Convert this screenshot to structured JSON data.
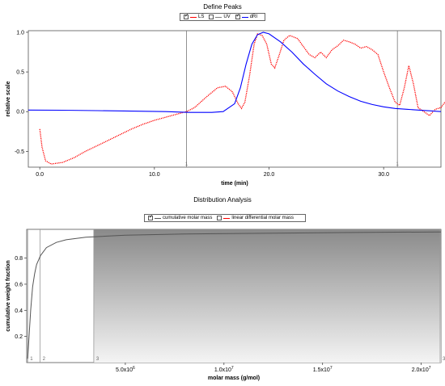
{
  "top": {
    "title": "Define Peaks",
    "legend": [
      {
        "label": "LS",
        "checked": true,
        "color": "#ff0000"
      },
      {
        "label": "UV",
        "checked": false,
        "color": "#808080"
      },
      {
        "label": "dRI",
        "checked": true,
        "color": "#0000ff"
      }
    ]
  },
  "bottom": {
    "title": "Distribution Analysis",
    "legend": [
      {
        "label": "cumulative molar mass",
        "checked": true,
        "color": "#555555"
      },
      {
        "label": "linear differential molar mass",
        "checked": false,
        "color": "#ff0000"
      }
    ]
  },
  "chart_data": [
    {
      "type": "line",
      "title": "Define Peaks",
      "xlabel": "time (min)",
      "ylabel": "relative scale",
      "xlim": [
        -1,
        35
      ],
      "ylim": [
        -0.7,
        1.02
      ],
      "xticks": [
        {
          "v": 0,
          "label": "0.0"
        },
        {
          "v": 10,
          "label": "10.0"
        },
        {
          "v": 20,
          "label": "20.0"
        },
        {
          "v": 30,
          "label": "30.0"
        }
      ],
      "yticks": [
        {
          "v": 1.0,
          "label": "1.0"
        },
        {
          "v": 0.5,
          "label": "0.5"
        },
        {
          "v": 0.0,
          "label": "0.0"
        },
        {
          "v": -0.5,
          "label": "-0.5"
        }
      ],
      "markers": [
        {
          "x": 12.8,
          "label": "1"
        },
        {
          "x": 31.2,
          "label": "1"
        }
      ],
      "series": [
        {
          "name": "LS",
          "color": "#ff0000",
          "style": "dotted",
          "points": [
            [
              0.0,
              -0.22
            ],
            [
              0.2,
              -0.45
            ],
            [
              0.5,
              -0.62
            ],
            [
              1,
              -0.66
            ],
            [
              2,
              -0.64
            ],
            [
              3,
              -0.58
            ],
            [
              4,
              -0.5
            ],
            [
              5,
              -0.43
            ],
            [
              6,
              -0.36
            ],
            [
              7,
              -0.29
            ],
            [
              8,
              -0.22
            ],
            [
              9,
              -0.16
            ],
            [
              10,
              -0.11
            ],
            [
              11,
              -0.07
            ],
            [
              12,
              -0.03
            ],
            [
              12.8,
              0.0
            ],
            [
              13.5,
              0.05
            ],
            [
              14.5,
              0.18
            ],
            [
              15.5,
              0.3
            ],
            [
              16.2,
              0.32
            ],
            [
              16.8,
              0.25
            ],
            [
              17.3,
              0.1
            ],
            [
              17.6,
              0.04
            ],
            [
              17.9,
              0.12
            ],
            [
              18.3,
              0.45
            ],
            [
              18.7,
              0.85
            ],
            [
              19.0,
              0.98
            ],
            [
              19.4,
              0.96
            ],
            [
              19.8,
              0.85
            ],
            [
              20.2,
              0.6
            ],
            [
              20.5,
              0.55
            ],
            [
              20.9,
              0.72
            ],
            [
              21.3,
              0.9
            ],
            [
              21.8,
              0.96
            ],
            [
              22.5,
              0.92
            ],
            [
              23,
              0.82
            ],
            [
              23.5,
              0.72
            ],
            [
              24,
              0.68
            ],
            [
              24.5,
              0.75
            ],
            [
              25,
              0.68
            ],
            [
              25.5,
              0.78
            ],
            [
              26,
              0.83
            ],
            [
              26.5,
              0.9
            ],
            [
              27,
              0.88
            ],
            [
              27.5,
              0.85
            ],
            [
              28,
              0.8
            ],
            [
              28.5,
              0.82
            ],
            [
              29,
              0.78
            ],
            [
              29.5,
              0.72
            ],
            [
              30,
              0.5
            ],
            [
              30.5,
              0.3
            ],
            [
              31,
              0.12
            ],
            [
              31.4,
              0.08
            ],
            [
              31.8,
              0.3
            ],
            [
              32.2,
              0.58
            ],
            [
              32.6,
              0.35
            ],
            [
              33,
              0.05
            ],
            [
              33.5,
              0.0
            ],
            [
              34,
              -0.05
            ],
            [
              34.5,
              0.03
            ],
            [
              35,
              0.05
            ],
            [
              35.5,
              0.15
            ]
          ]
        },
        {
          "name": "dRI",
          "color": "#0000ff",
          "style": "solid",
          "points": [
            [
              -1,
              0.02
            ],
            [
              2,
              0.018
            ],
            [
              5,
              0.012
            ],
            [
              8,
              0.006
            ],
            [
              11,
              0.0
            ],
            [
              13,
              -0.01
            ],
            [
              15,
              -0.01
            ],
            [
              16,
              0.0
            ],
            [
              17,
              0.1
            ],
            [
              17.5,
              0.3
            ],
            [
              18,
              0.6
            ],
            [
              18.5,
              0.85
            ],
            [
              19,
              0.97
            ],
            [
              19.5,
              1.0
            ],
            [
              20,
              0.98
            ],
            [
              21,
              0.88
            ],
            [
              22,
              0.75
            ],
            [
              23,
              0.6
            ],
            [
              24,
              0.47
            ],
            [
              25,
              0.35
            ],
            [
              26,
              0.26
            ],
            [
              27,
              0.19
            ],
            [
              28,
              0.13
            ],
            [
              29,
              0.09
            ],
            [
              30,
              0.06
            ],
            [
              31,
              0.04
            ],
            [
              32,
              0.03
            ],
            [
              33,
              0.02
            ],
            [
              34,
              0.01
            ],
            [
              35,
              0.0
            ]
          ]
        }
      ]
    },
    {
      "type": "line",
      "title": "Distribution Analysis",
      "xlabel": "molar mass (g/mol)",
      "ylabel": "cumulative weight fraction",
      "xlim": [
        0,
        21000000
      ],
      "ylim": [
        0,
        1.02
      ],
      "xticks": [
        {
          "v": 5000000,
          "base": "5.0x10",
          "exp": "6"
        },
        {
          "v": 10000000,
          "base": "1.0x10",
          "exp": "7"
        },
        {
          "v": 15000000,
          "base": "1.5x10",
          "exp": "7"
        },
        {
          "v": 20000000,
          "base": "2.0x10",
          "exp": "7"
        }
      ],
      "yticks": [
        {
          "v": 0.8,
          "label": "0.8"
        },
        {
          "v": 0.6,
          "label": "0.6"
        },
        {
          "v": 0.4,
          "label": "0.4"
        },
        {
          "v": 0.2,
          "label": "0.2"
        }
      ],
      "markers": [
        {
          "x": 50000,
          "label": "1"
        },
        {
          "x": 680000,
          "label": "2"
        },
        {
          "x": 3400000,
          "label": "3"
        },
        {
          "x": 21000000,
          "label": "3"
        }
      ],
      "shaded_region": [
        3400000,
        21000000
      ],
      "series": [
        {
          "name": "cumulative molar mass",
          "color": "#555555",
          "style": "solid",
          "points": [
            [
              50000,
              0.03
            ],
            [
              100000,
              0.15
            ],
            [
              200000,
              0.4
            ],
            [
              300000,
              0.58
            ],
            [
              400000,
              0.68
            ],
            [
              500000,
              0.75
            ],
            [
              700000,
              0.82
            ],
            [
              1000000,
              0.88
            ],
            [
              1500000,
              0.92
            ],
            [
              2000000,
              0.94
            ],
            [
              3000000,
              0.96
            ],
            [
              5000000,
              0.975
            ],
            [
              8000000,
              0.985
            ],
            [
              12000000,
              0.99
            ],
            [
              16000000,
              0.995
            ],
            [
              21000000,
              1.0
            ]
          ]
        }
      ]
    }
  ]
}
